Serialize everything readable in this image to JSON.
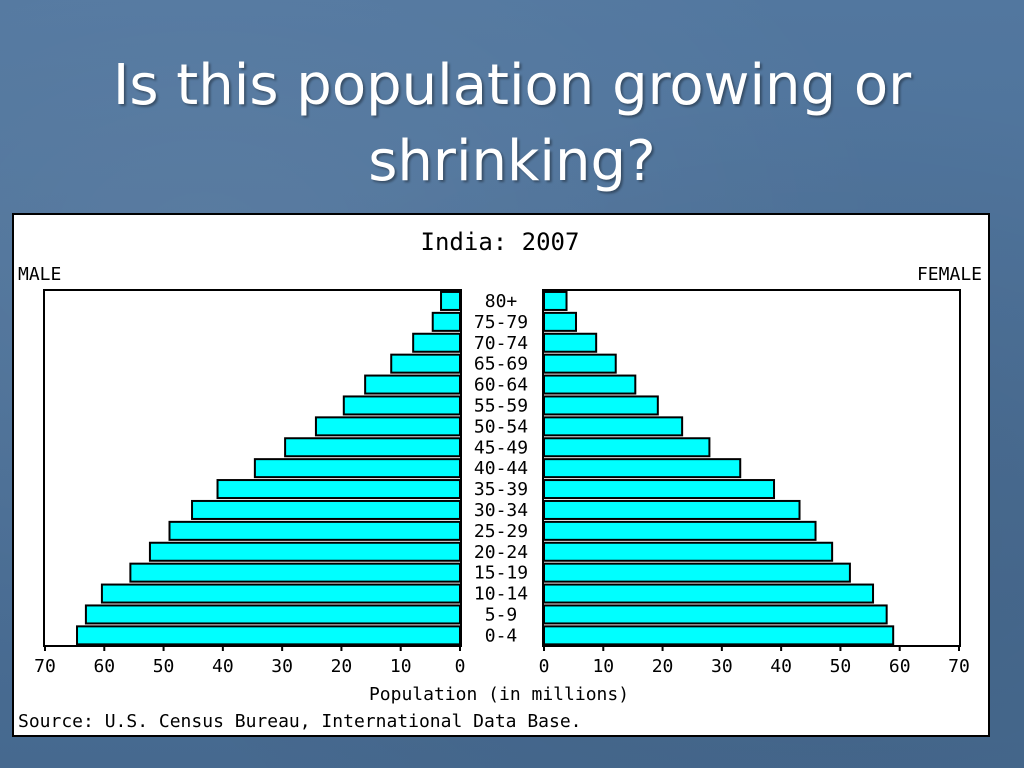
{
  "slide": {
    "title_line1": "Is this population growing or",
    "title_line2": "shrinking?"
  },
  "chart_data": {
    "type": "bar",
    "title": "India: 2007",
    "left_label": "MALE",
    "right_label": "FEMALE",
    "xlabel": "Population (in millions)",
    "source": "Source: U.S. Census Bureau, International Data Base.",
    "xlim": [
      0,
      70
    ],
    "x_ticks": [
      70,
      60,
      50,
      40,
      30,
      20,
      10,
      0
    ],
    "x_ticks_right": [
      0,
      10,
      20,
      30,
      40,
      50,
      60,
      70
    ],
    "categories": [
      "80+",
      "75-79",
      "70-74",
      "65-69",
      "60-64",
      "55-59",
      "50-54",
      "45-49",
      "40-44",
      "35-39",
      "30-34",
      "25-29",
      "20-24",
      "15-19",
      "10-14",
      "5-9",
      "0-4"
    ],
    "series": [
      {
        "name": "MALE",
        "values": [
          3.2,
          4.6,
          7.9,
          11.6,
          16.0,
          19.6,
          24.3,
          29.5,
          34.6,
          40.9,
          45.2,
          49.0,
          52.3,
          55.6,
          60.4,
          63.1,
          64.6
        ]
      },
      {
        "name": "FEMALE",
        "values": [
          3.8,
          5.4,
          8.8,
          12.1,
          15.4,
          19.2,
          23.3,
          27.9,
          33.1,
          38.8,
          43.1,
          45.8,
          48.6,
          51.6,
          55.5,
          57.8,
          58.9
        ]
      }
    ],
    "bar_color": "#00ffff",
    "grid": false
  }
}
